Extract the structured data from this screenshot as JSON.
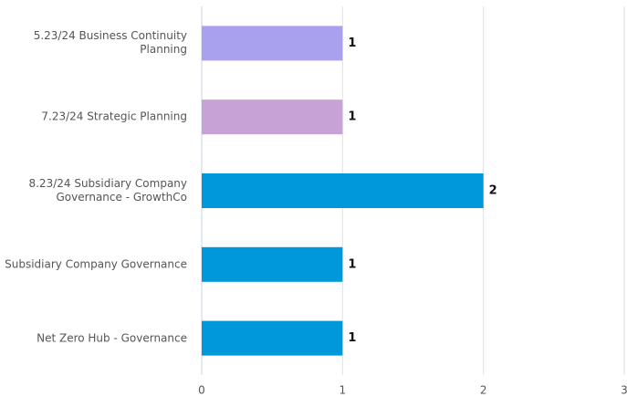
{
  "chart_data": {
    "type": "hbar",
    "categories": [
      "5.23/24 Business Continuity Planning",
      "7.23/24 Strategic Planning",
      "8.23/24 Subsidiary Company Governance - GrowthCo",
      "Subsidiary Company Governance",
      "Net Zero Hub - Governance"
    ],
    "values": [
      1,
      1,
      2,
      1,
      1
    ],
    "colors": [
      "#a9a0ee",
      "#c6a2d6",
      "#0098da",
      "#0098da",
      "#0098da"
    ],
    "xlim": [
      0,
      3
    ],
    "xticks": [
      0,
      1,
      2,
      3
    ],
    "grid": true
  }
}
